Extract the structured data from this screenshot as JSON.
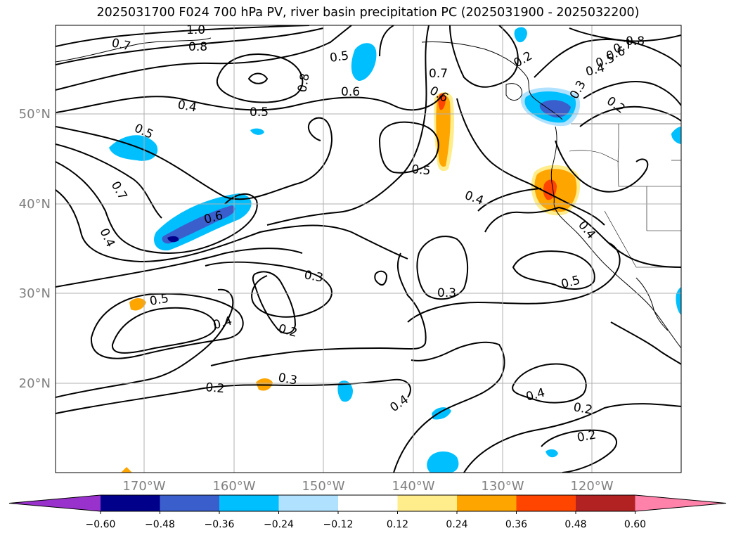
{
  "title": "2025031700 F024 700 hPa PV, river basin precipitation PC (2025031900 - 2025032200)",
  "map": {
    "lat_labels": [
      "50°N",
      "40°N",
      "30°N",
      "20°N"
    ],
    "lon_labels": [
      "170°W",
      "160°W",
      "150°W",
      "140°W",
      "130°W",
      "120°W"
    ],
    "contour_labels": [
      "1.0",
      "0.7",
      "0.8",
      "0.5",
      "0.6",
      "0.7",
      "0.6",
      "0.2",
      "0.8",
      "0.7",
      "0.6",
      "0.5",
      "0.4",
      "0.3",
      "0.2",
      "0.4",
      "0.5",
      "0.5",
      "0.8",
      "0.5",
      "0.7",
      "0.6",
      "0.4",
      "0.4",
      "0.4",
      "0.3",
      "0.3",
      "0.5",
      "0.5",
      "0.4",
      "0.2",
      "0.3",
      "0.2",
      "0.4",
      "0.4",
      "0.2",
      "0.2"
    ],
    "colors": {
      "neg_extreme": "#9932CC",
      "neg_060": "#00008B",
      "neg_048": "#3A5FCD",
      "neg_036": "#00BFFF",
      "neg_024": "#B0E2FF",
      "pos_024": "#FFEC8B",
      "pos_036": "#FFA500",
      "pos_048": "#FF4500",
      "pos_060": "#B22222",
      "pos_extreme": "#FF82AB"
    }
  },
  "colorbar": {
    "ticks": [
      "−0.60",
      "−0.48",
      "−0.36",
      "−0.24",
      "−0.12",
      "0.12",
      "0.24",
      "0.36",
      "0.48",
      "0.60"
    ],
    "colors": [
      "#9932CC",
      "#00008B",
      "#3A5FCD",
      "#00BFFF",
      "#B0E2FF",
      "#FFFFFF",
      "#FFEC8B",
      "#FFA500",
      "#FF4500",
      "#B22222",
      "#FF82AB"
    ]
  }
}
